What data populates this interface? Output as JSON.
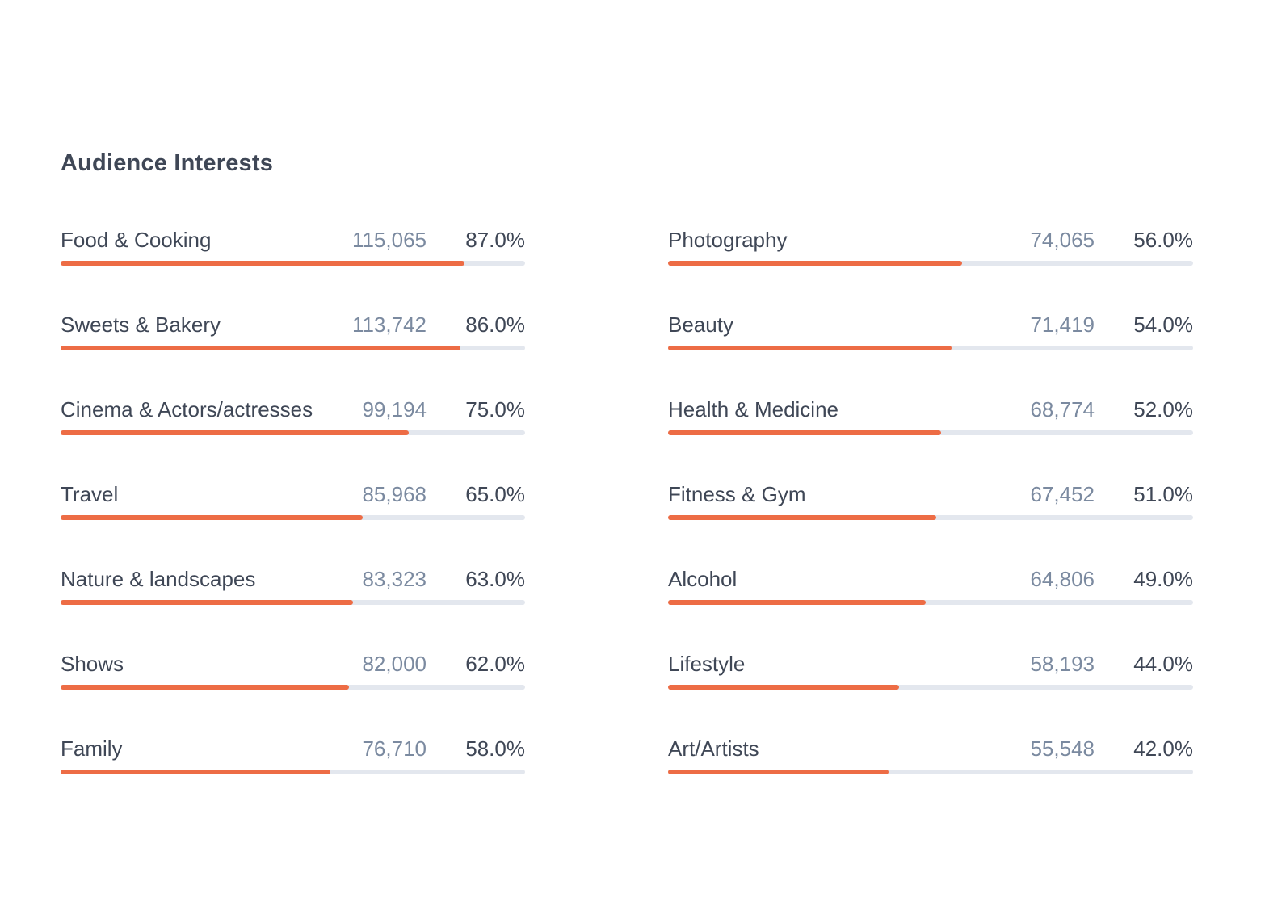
{
  "title": "Audience Interests",
  "colors": {
    "fill": "#ed6c45",
    "track": "#e3e7ee"
  },
  "chart_data": {
    "type": "bar",
    "title": "Audience Interests",
    "xlim": [
      0,
      100
    ],
    "left": [
      {
        "label": "Food & Cooking",
        "count": "115,065",
        "percent": "87.0%",
        "value": 87.0
      },
      {
        "label": "Sweets & Bakery",
        "count": "113,742",
        "percent": "86.0%",
        "value": 86.0
      },
      {
        "label": "Cinema & Actors/actresses",
        "count": "99,194",
        "percent": "75.0%",
        "value": 75.0
      },
      {
        "label": "Travel",
        "count": "85,968",
        "percent": "65.0%",
        "value": 65.0
      },
      {
        "label": "Nature & landscapes",
        "count": "83,323",
        "percent": "63.0%",
        "value": 63.0
      },
      {
        "label": "Shows",
        "count": "82,000",
        "percent": "62.0%",
        "value": 62.0
      },
      {
        "label": "Family",
        "count": "76,710",
        "percent": "58.0%",
        "value": 58.0
      }
    ],
    "right": [
      {
        "label": "Photography",
        "count": "74,065",
        "percent": "56.0%",
        "value": 56.0
      },
      {
        "label": "Beauty",
        "count": "71,419",
        "percent": "54.0%",
        "value": 54.0
      },
      {
        "label": "Health & Medicine",
        "count": "68,774",
        "percent": "52.0%",
        "value": 52.0
      },
      {
        "label": "Fitness & Gym",
        "count": "67,452",
        "percent": "51.0%",
        "value": 51.0
      },
      {
        "label": "Alcohol",
        "count": "64,806",
        "percent": "49.0%",
        "value": 49.0
      },
      {
        "label": "Lifestyle",
        "count": "58,193",
        "percent": "44.0%",
        "value": 44.0
      },
      {
        "label": "Art/Artists",
        "count": "55,548",
        "percent": "42.0%",
        "value": 42.0
      }
    ]
  }
}
